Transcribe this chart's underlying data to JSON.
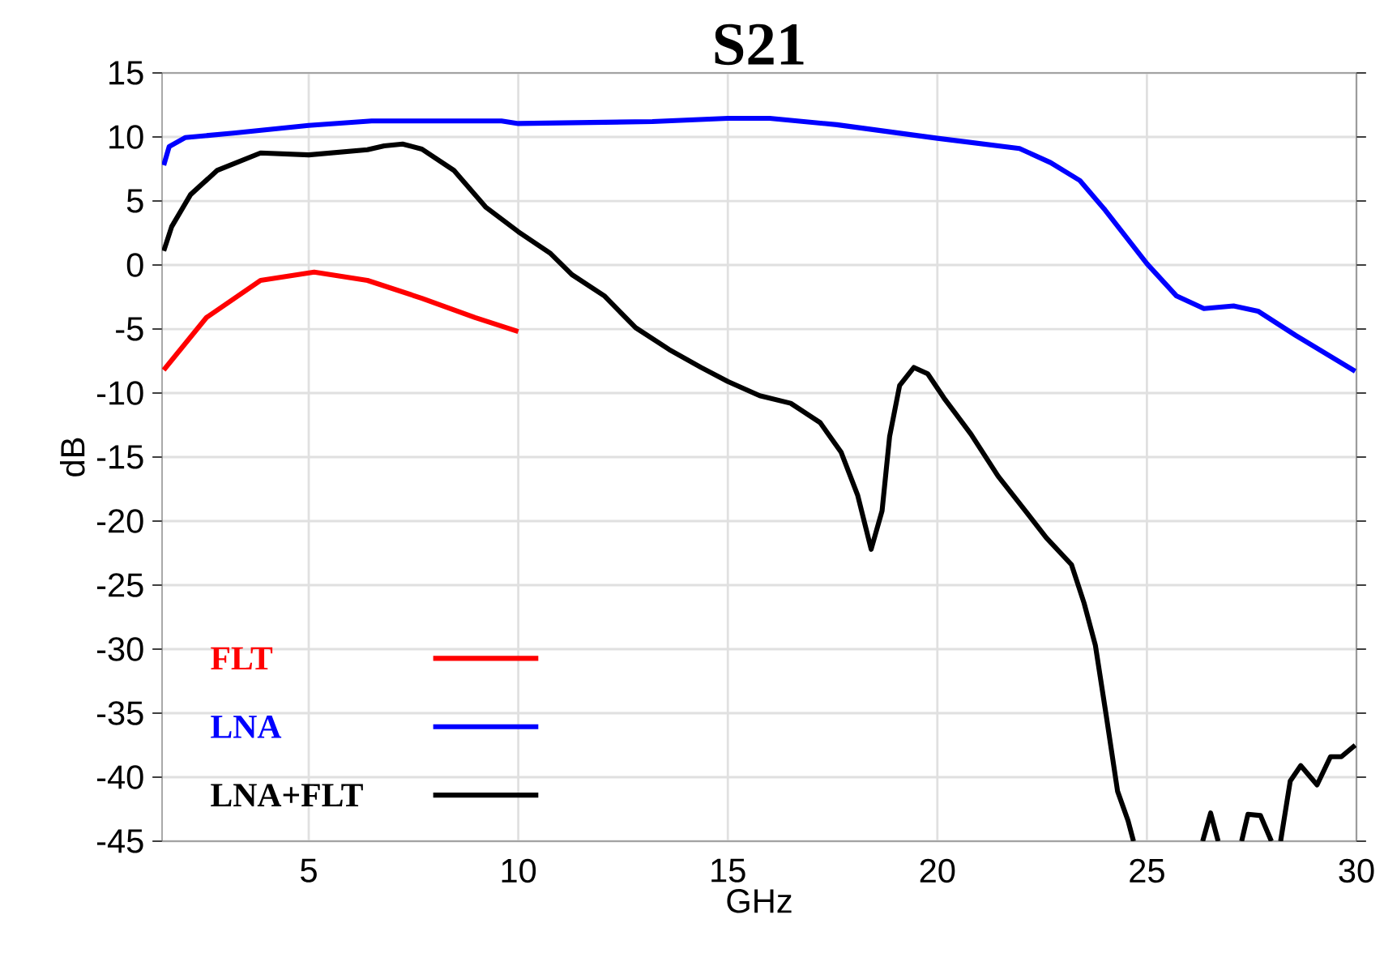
{
  "chart_data": {
    "type": "line",
    "title": "S21",
    "xlabel": "GHz",
    "ylabel": "dB",
    "xlim": [
      1.5,
      30
    ],
    "ylim": [
      -45,
      15
    ],
    "xticks": [
      5,
      10,
      15,
      20,
      25,
      30
    ],
    "yticks": [
      -45,
      -40,
      -35,
      -30,
      -25,
      -20,
      -15,
      -10,
      -5,
      0,
      5,
      10,
      15
    ],
    "grid": true,
    "legend": "bottom left",
    "marker": "none",
    "line_style": "solid",
    "series": [
      {
        "name": "FLT",
        "color": "#ff0000",
        "x": [
          1.54,
          2.56,
          3.85,
          5.13,
          6.4,
          7.7,
          8.97,
          10
        ],
        "values": [
          -8.2,
          -4.1,
          -1.2,
          -0.55,
          -1.2,
          -2.6,
          -4.1,
          -5.2
        ]
      },
      {
        "name": "LNA",
        "color": "#0000ff",
        "x": [
          1.54,
          1.67,
          2.05,
          3.2,
          5,
          6.5,
          9.6,
          10,
          13.2,
          15,
          16,
          17.6,
          20,
          21.96,
          22.7,
          23.4,
          24,
          25,
          25.7,
          26.36,
          27.07,
          27.65,
          28.55,
          29.97
        ],
        "values": [
          7.8,
          9.25,
          9.95,
          10.3,
          10.9,
          11.25,
          11.25,
          11.05,
          11.2,
          11.46,
          11.46,
          10.96,
          9.9,
          9.1,
          8,
          6.6,
          4.3,
          0.1,
          -2.4,
          -3.4,
          -3.2,
          -3.6,
          -5.5,
          -8.3
        ]
      },
      {
        "name": "LNA+FLT",
        "color": "#000000",
        "x": [
          1.54,
          1.73,
          2.18,
          2.82,
          3.85,
          5,
          6.4,
          6.8,
          7.24,
          7.7,
          8.46,
          9.23,
          10,
          10.77,
          11.28,
          12.05,
          12.8,
          13.6,
          14.36,
          15,
          15.76,
          16.5,
          17.2,
          17.7,
          18.1,
          18.42,
          18.68,
          18.86,
          19.1,
          19.44,
          19.77,
          20.16,
          20.8,
          21.45,
          22.1,
          22.6,
          23.2,
          23.5,
          23.77,
          24.03,
          24.3,
          24.55,
          24.68,
          25.5,
          26.33,
          26.52,
          26.7,
          27,
          27.26,
          27.41,
          27.71,
          27.97,
          28.1,
          28.19,
          28.42,
          28.67,
          29.06,
          29.38,
          29.64,
          29.97
        ],
        "values": [
          1.1,
          3,
          5.5,
          7.4,
          8.75,
          8.6,
          9,
          9.3,
          9.45,
          9.05,
          7.4,
          4.5,
          2.6,
          0.9,
          -0.75,
          -2.4,
          -4.9,
          -6.6,
          -8,
          -9.1,
          -10.2,
          -10.8,
          -12.3,
          -14.6,
          -18,
          -22.2,
          -19.2,
          -13.4,
          -9.4,
          -8,
          -8.5,
          -10.4,
          -13.2,
          -16.5,
          -19.2,
          -21.3,
          -23.4,
          -26.4,
          -29.7,
          -35.2,
          -41.1,
          -43.4,
          -45,
          null,
          -45,
          -42.8,
          -45,
          null,
          -45,
          -42.9,
          -43,
          -45,
          null,
          -45,
          -40.3,
          -39.1,
          -40.6,
          -38.4,
          -38.4,
          -37.5
        ]
      }
    ]
  }
}
